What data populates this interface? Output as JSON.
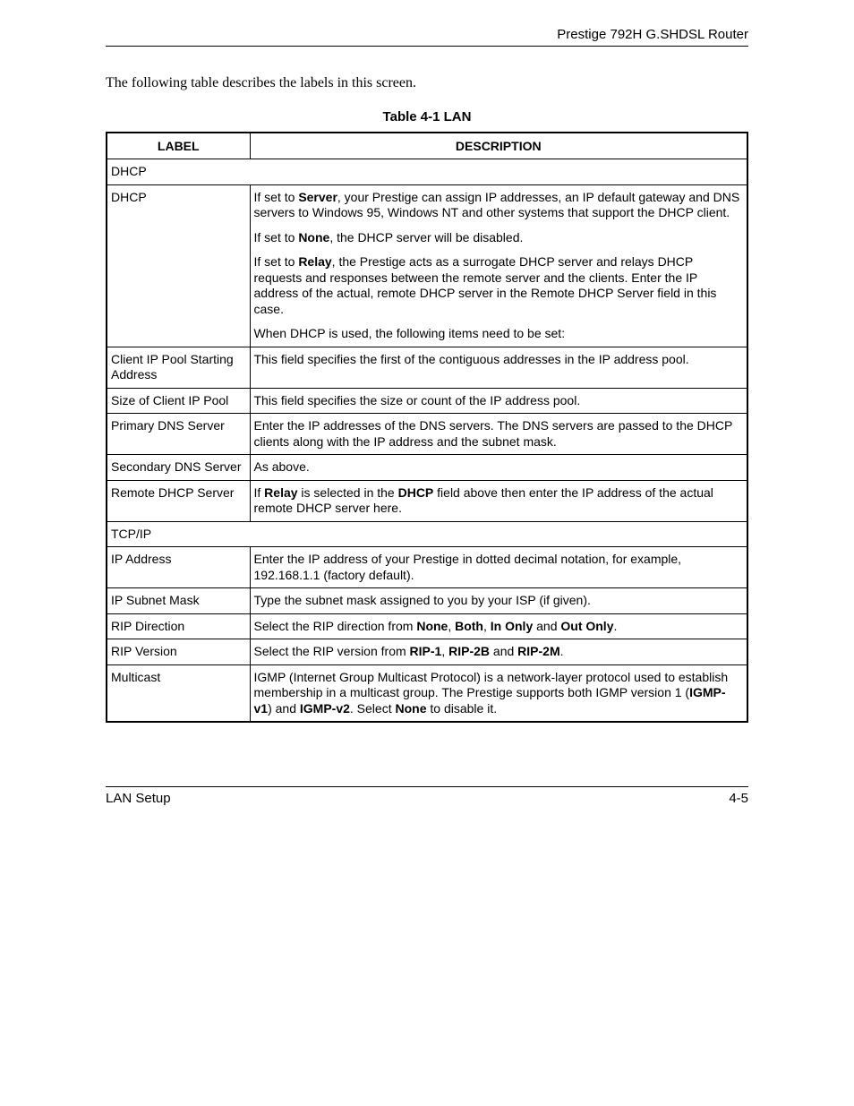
{
  "header": {
    "title": "Prestige 792H G.SHDSL Router"
  },
  "intro": "The following table describes the labels in this screen.",
  "caption": "Table 4-1 LAN",
  "thead": {
    "label": "LABEL",
    "description": "DESCRIPTION"
  },
  "rows": [
    {
      "type": "section",
      "label": "DHCP"
    },
    {
      "type": "row",
      "label": "DHCP",
      "paras": [
        [
          {
            "t": "If set to "
          },
          {
            "t": "Server",
            "b": true
          },
          {
            "t": ", your Prestige can assign IP addresses, an IP default gateway and DNS servers to Windows 95, Windows NT and other systems that support the DHCP client."
          }
        ],
        [
          {
            "t": "If set to "
          },
          {
            "t": "None",
            "b": true
          },
          {
            "t": ", the DHCP server will be disabled."
          }
        ],
        [
          {
            "t": "If set to "
          },
          {
            "t": "Relay",
            "b": true
          },
          {
            "t": ", the Prestige acts as a surrogate DHCP server and relays DHCP requests and responses between the remote server and the clients. Enter the IP address of the actual, remote DHCP server in the Remote DHCP Server field in this case."
          }
        ],
        [
          {
            "t": "When DHCP is used, the following items need to be set:"
          }
        ]
      ]
    },
    {
      "type": "row",
      "label": "Client IP Pool Starting Address",
      "paras": [
        [
          {
            "t": "This field specifies the first of the contiguous addresses in the IP address pool."
          }
        ]
      ]
    },
    {
      "type": "row",
      "label": "Size of Client IP Pool",
      "paras": [
        [
          {
            "t": "This field specifies the size or count of the IP address pool."
          }
        ]
      ]
    },
    {
      "type": "row",
      "label": "Primary DNS Server",
      "paras": [
        [
          {
            "t": "Enter the IP addresses of the DNS servers. The DNS servers are passed to the DHCP clients along with the IP address and the subnet mask."
          }
        ]
      ]
    },
    {
      "type": "row",
      "label": "Secondary DNS Server",
      "paras": [
        [
          {
            "t": "As above."
          }
        ]
      ]
    },
    {
      "type": "row",
      "label": "Remote DHCP Server",
      "paras": [
        [
          {
            "t": "If "
          },
          {
            "t": "Relay",
            "b": true
          },
          {
            "t": " is selected in the "
          },
          {
            "t": "DHCP",
            "b": true
          },
          {
            "t": " field above then enter the IP address of the actual remote DHCP server here."
          }
        ]
      ]
    },
    {
      "type": "section",
      "label": "TCP/IP"
    },
    {
      "type": "row",
      "label": "IP Address",
      "paras": [
        [
          {
            "t": "Enter the IP address of your Prestige in dotted decimal notation, for example, 192.168.1.1 (factory default)."
          }
        ]
      ]
    },
    {
      "type": "row",
      "label": "IP Subnet Mask",
      "paras": [
        [
          {
            "t": "Type the subnet mask assigned to you by your ISP (if given)."
          }
        ]
      ]
    },
    {
      "type": "row",
      "label": "RIP Direction",
      "paras": [
        [
          {
            "t": "Select the RIP direction from "
          },
          {
            "t": "None",
            "b": true
          },
          {
            "t": ", "
          },
          {
            "t": "Both",
            "b": true
          },
          {
            "t": ", "
          },
          {
            "t": "In Only",
            "b": true
          },
          {
            "t": " and "
          },
          {
            "t": "Out Only",
            "b": true
          },
          {
            "t": "."
          }
        ]
      ]
    },
    {
      "type": "row",
      "label": "RIP Version",
      "paras": [
        [
          {
            "t": "Select the RIP version from "
          },
          {
            "t": "RIP-1",
            "b": true
          },
          {
            "t": ", "
          },
          {
            "t": "RIP-2B",
            "b": true
          },
          {
            "t": " and "
          },
          {
            "t": "RIP-2M",
            "b": true
          },
          {
            "t": "."
          }
        ]
      ]
    },
    {
      "type": "row",
      "label": "Multicast",
      "paras": [
        [
          {
            "t": "IGMP (Internet Group Multicast Protocol) is a network-layer protocol used to establish membership in a multicast group. The Prestige supports both IGMP version 1 ("
          },
          {
            "t": "IGMP-v1",
            "b": true
          },
          {
            "t": ") and "
          },
          {
            "t": "IGMP-v2",
            "b": true
          },
          {
            "t": ". Select "
          },
          {
            "t": "None",
            "b": true
          },
          {
            "t": " to disable it."
          }
        ]
      ]
    }
  ],
  "footer": {
    "left": "LAN Setup",
    "right": "4-5"
  }
}
